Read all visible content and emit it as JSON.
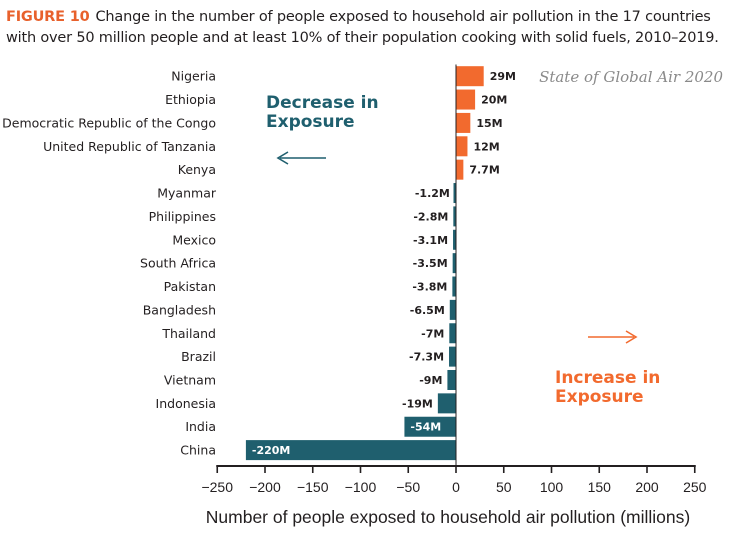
{
  "caption": {
    "figure_label": "FIGURE 10",
    "text": "Change in the number of people exposed to household air pollution in the 17 countries with over 50 million people and at least 10% of their population cooking with solid fuels, 2010–2019."
  },
  "source_note": "State of Global Air 2020",
  "annotations": {
    "decrease_line1": "Decrease in",
    "decrease_line2": "Exposure",
    "increase_line1": "Increase in",
    "increase_line2": "Exposure"
  },
  "colors": {
    "increase": "#f26a2e",
    "decrease": "#1f5f6e",
    "axis": "#231f20"
  },
  "chart_data": {
    "type": "bar",
    "orientation": "horizontal",
    "categories": [
      "Nigeria",
      "Ethiopia",
      "Democratic Republic of the Congo",
      "United Republic of Tanzania",
      "Kenya",
      "Myanmar",
      "Philippines",
      "Mexico",
      "South Africa",
      "Pakistan",
      "Bangladesh",
      "Thailand",
      "Brazil",
      "Vietnam",
      "Indonesia",
      "India",
      "China"
    ],
    "values": [
      29,
      20,
      15,
      12,
      7.7,
      -1.2,
      -2.8,
      -3.1,
      -3.5,
      -3.8,
      -6.5,
      -7,
      -7.3,
      -9,
      -19,
      -54,
      -220
    ],
    "value_labels": [
      "29M",
      "20M",
      "15M",
      "12M",
      "7.7M",
      "-1.2M",
      "-2.8M",
      "-3.1M",
      "-3.5M",
      "-3.8M",
      "-6.5M",
      "-7M",
      "-7.3M",
      "-9M",
      "-19M",
      "-54M",
      "-220M"
    ],
    "xlabel": "Number of people exposed to household air pollution (millions)",
    "xlim": [
      -250,
      250
    ],
    "xticks": [
      -250,
      -200,
      -150,
      -100,
      -50,
      0,
      50,
      100,
      150,
      200,
      250
    ],
    "xtick_labels": [
      "−250",
      "−200",
      "−150",
      "−100",
      "−50",
      "0",
      "50",
      "100",
      "150",
      "200",
      "250"
    ],
    "grid": false
  }
}
